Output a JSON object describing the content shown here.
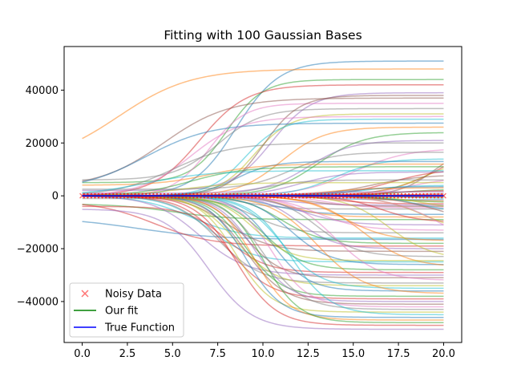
{
  "chart_data": {
    "type": "line",
    "title": "Fitting with 100 Gaussian Bases",
    "xlabel": "",
    "ylabel": "",
    "xlim": [
      -1,
      21
    ],
    "ylim": [
      -55500,
      56500
    ],
    "xticks": [
      0,
      2.5,
      5,
      7.5,
      10,
      12.5,
      15,
      17.5,
      20
    ],
    "xtick_labels": [
      "0.0",
      "2.5",
      "5.0",
      "7.5",
      "10.0",
      "12.5",
      "15.0",
      "17.5",
      "20.0"
    ],
    "yticks": [
      -40000,
      -20000,
      0,
      20000,
      40000
    ],
    "ytick_labels": [
      "−40000",
      "−20000",
      "0",
      "20000",
      "40000"
    ],
    "grid": false,
    "legend_position": "lower-left",
    "legend": [
      {
        "label": "Noisy Data",
        "marker": "x",
        "color": "#ff0000"
      },
      {
        "label": "Our fit",
        "marker": "line",
        "color": "#008000"
      },
      {
        "label": "True Function",
        "marker": "line",
        "color": "#0000ff"
      }
    ],
    "basis_curves": {
      "count": 100,
      "x_range": [
        0,
        20
      ],
      "alpha": 0.5,
      "palette": [
        "#1f77b4",
        "#ff7f0e",
        "#2ca02c",
        "#d62728",
        "#9467bd",
        "#8c564b",
        "#e377c2",
        "#7f7f7f",
        "#bcbd22",
        "#17becf"
      ],
      "final_values": [
        51000,
        48000,
        44000,
        42000,
        39000,
        37000,
        35000,
        33000,
        31000,
        29000,
        27500,
        26000,
        24000,
        22000,
        21000,
        19500,
        18000,
        16500,
        15000,
        14000,
        13000,
        12000,
        11000,
        10000,
        9000,
        8000,
        7000,
        6000,
        5000,
        4000,
        3500,
        3000,
        2500,
        2000,
        1500,
        1000,
        500,
        0,
        -500,
        -1000,
        -1500,
        -2000,
        -2500,
        -3000,
        -3500,
        -4000,
        -4500,
        -5000,
        -5500,
        -6000,
        -7000,
        -8000,
        -9000,
        -10000,
        -11000,
        -12000,
        -13000,
        -14000,
        -15000,
        -16000,
        -16500,
        -17000,
        -18000,
        -19000,
        -20000,
        -21000,
        -22000,
        -23000,
        -24000,
        -25000,
        -26000,
        -27000,
        -28000,
        -29000,
        -30000,
        -31000,
        -32000,
        -33000,
        -34000,
        -35000,
        -36000,
        -37000,
        -38000,
        -39000,
        -40000,
        -41000,
        -42000,
        -43000,
        -44000,
        -45000,
        -46000,
        -47000,
        -48000,
        -49000,
        -50500,
        38000,
        30000,
        20000,
        -24500,
        9500
      ],
      "start_values": [
        0,
        12000,
        5000,
        0,
        2000,
        3000,
        0,
        6000,
        0,
        0,
        2000,
        0,
        0,
        0,
        1000,
        0,
        0,
        2500,
        0,
        0,
        0,
        4000,
        0,
        0,
        0,
        0,
        0,
        0,
        0,
        0,
        0,
        0,
        0,
        0,
        0,
        0,
        0,
        0,
        0,
        0,
        0,
        0,
        0,
        0,
        0,
        0,
        0,
        0,
        0,
        0,
        0,
        0,
        -3000,
        0,
        0,
        0,
        0,
        -1000,
        0,
        0,
        -8000,
        0,
        0,
        -2000,
        0,
        0,
        0,
        0,
        0,
        0,
        0,
        0,
        0,
        -4000,
        0,
        0,
        0,
        0,
        0,
        0,
        0,
        0,
        0,
        0,
        0,
        0,
        0,
        0,
        0,
        0,
        0,
        0,
        0,
        0,
        -5000,
        0,
        0,
        0,
        0,
        0
      ],
      "mid_x": [
        8.5,
        2.0,
        8.0,
        6.5,
        10.5,
        4.5,
        7.0,
        7.5,
        9.5,
        9.0,
        3.5,
        11.0,
        13.0,
        20.0,
        12.5,
        19.5,
        15.0,
        11.5,
        19.0,
        14.0,
        8.5,
        7.0,
        6.0,
        17.0,
        12.0,
        16.0,
        18.0,
        10.0,
        5.5,
        15.5,
        14.5,
        13.5,
        17.5,
        16.5,
        12.0,
        18.5,
        19.5,
        10.0,
        15.0,
        18.0,
        13.0,
        16.0,
        17.0,
        14.0,
        11.0,
        12.5,
        13.5,
        9.0,
        19.0,
        18.5,
        10.5,
        11.5,
        5.0,
        16.5,
        12.0,
        20.0,
        13.0,
        9.5,
        19.0,
        6.0,
        3.0,
        14.5,
        11.0,
        4.0,
        12.0,
        8.0,
        20.0,
        13.0,
        17.0,
        7.0,
        11.5,
        15.5,
        10.0,
        8.0,
        6.5,
        9.0,
        14.0,
        7.5,
        8.5,
        11.0,
        10.5,
        13.0,
        9.0,
        8.0,
        9.5,
        9.0,
        10.5,
        10.0,
        8.5,
        11.5,
        9.0,
        9.5,
        10.0,
        8.5,
        7.0,
        10.0,
        6.0,
        5.0,
        9.5,
        3.5
      ],
      "width": [
        1.2,
        2.0,
        1.0,
        1.3,
        1.1,
        1.8,
        1.0,
        1.2,
        1.0,
        1.0,
        1.8,
        1.2,
        1.3,
        1.5,
        1.2,
        1.0,
        1.5,
        1.2,
        1.3,
        1.2,
        1.0,
        1.4,
        1.5,
        1.3,
        1.2,
        1.4,
        1.3,
        1.1,
        1.5,
        1.2,
        1.3,
        1.2,
        1.1,
        1.2,
        1.0,
        1.1,
        1.0,
        1.0,
        1.2,
        1.1,
        1.3,
        1.1,
        1.2,
        1.0,
        1.2,
        1.1,
        1.0,
        1.1,
        1.2,
        1.0,
        1.1,
        1.0,
        1.6,
        1.1,
        1.2,
        1.5,
        1.2,
        1.0,
        1.3,
        1.4,
        2.2,
        1.2,
        1.1,
        1.6,
        1.0,
        1.2,
        1.5,
        1.1,
        1.2,
        1.2,
        1.1,
        1.3,
        1.1,
        1.1,
        1.3,
        1.0,
        1.2,
        1.2,
        1.1,
        1.1,
        1.0,
        1.3,
        1.0,
        1.2,
        1.0,
        1.1,
        1.0,
        1.1,
        1.0,
        1.1,
        1.0,
        1.0,
        1.0,
        1.1,
        1.2,
        1.0,
        1.4,
        1.6,
        1.0,
        1.8
      ]
    },
    "series": [
      {
        "name": "Noisy Data",
        "type": "scatter",
        "marker": "x",
        "color": "#ff0000",
        "alpha": 0.55,
        "x_range": [
          0,
          20
        ],
        "n_points": 100,
        "y_value": 0
      },
      {
        "name": "Our fit",
        "type": "line",
        "color": "#008000",
        "x_range": [
          0,
          20
        ],
        "y_value": 0
      },
      {
        "name": "True Function",
        "type": "line",
        "color": "#0000ff",
        "x_range": [
          0,
          20
        ],
        "y_value": 0
      }
    ]
  }
}
